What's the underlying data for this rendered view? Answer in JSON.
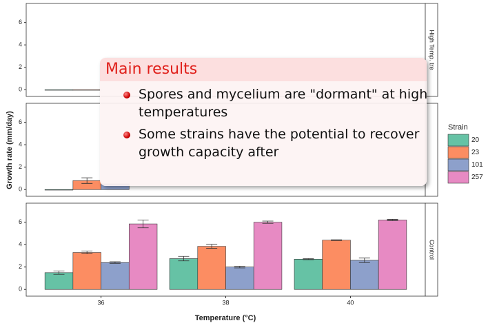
{
  "chart_data": {
    "type": "bar",
    "xlabel": "Temperature (°C)",
    "ylabel": "Growth rate (mm/day)",
    "legend_title": "Strain",
    "categories": [
      "36",
      "38",
      "40"
    ],
    "ylim": [
      -0.6,
      7.7
    ],
    "yticks": [
      0,
      2,
      4,
      6
    ],
    "series": [
      {
        "name": "20",
        "color": "#66c2a5"
      },
      {
        "name": "23",
        "color": "#fc8d62"
      },
      {
        "name": "101",
        "color": "#8da0cb"
      },
      {
        "name": "257",
        "color": "#e78ac3"
      }
    ],
    "panels": [
      {
        "label": "High Temp. tre",
        "series": [
          {
            "values": [
              0,
              null,
              null
            ],
            "errors": [
              null,
              null,
              null
            ]
          },
          {
            "values": [
              0,
              null,
              null
            ],
            "errors": [
              null,
              null,
              null
            ]
          },
          {
            "values": [
              null,
              null,
              null
            ],
            "errors": [
              null,
              null,
              null
            ]
          },
          {
            "values": [
              null,
              null,
              null
            ],
            "errors": [
              null,
              null,
              null
            ]
          }
        ]
      },
      {
        "series": [
          {
            "values": [
              0,
              null,
              null
            ],
            "errors": [
              null,
              null,
              null
            ]
          },
          {
            "values": [
              0.8,
              null,
              null
            ],
            "errors": [
              0.25,
              null,
              null
            ]
          },
          {
            "values": [
              0.5,
              null,
              null
            ],
            "errors": [
              null,
              null,
              null
            ]
          },
          {
            "values": [
              null,
              null,
              null
            ],
            "errors": [
              null,
              null,
              null
            ]
          }
        ]
      },
      {
        "label": "Control",
        "series": [
          {
            "values": [
              1.5,
              2.75,
              2.7
            ],
            "errors": [
              0.15,
              0.2,
              0.05
            ]
          },
          {
            "values": [
              3.3,
              3.85,
              4.4
            ],
            "errors": [
              0.12,
              0.18,
              0.03
            ]
          },
          {
            "values": [
              2.4,
              2.0,
              2.6
            ],
            "errors": [
              0.07,
              0.08,
              0.2
            ]
          },
          {
            "values": [
              5.85,
              6.0,
              6.2
            ],
            "errors": [
              0.35,
              0.1,
              0.06
            ]
          }
        ]
      }
    ]
  },
  "overlay": {
    "title": "Main results",
    "items": [
      "Spores and mycelium are \"dormant\" at high temperatures",
      "Some strains have the potential to recover growth capacity after"
    ]
  }
}
